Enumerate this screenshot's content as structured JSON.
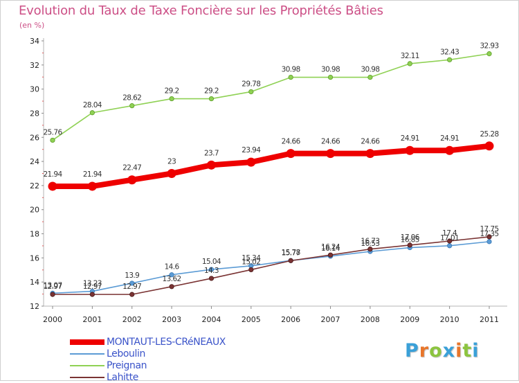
{
  "title": "Evolution du Taux de Taxe Foncière sur les Propriétés Bâties",
  "unit": "(en %)",
  "logo": {
    "text": "Proxiti",
    "letters": [
      "P",
      "r",
      "o",
      "x",
      "i",
      "t",
      "i"
    ],
    "colors": [
      "#3aa0d8",
      "#e8762b",
      "#8cc43f",
      "#3aa0d8",
      "#e8762b",
      "#8cc43f",
      "#3aa0d8"
    ]
  },
  "chart_data": {
    "type": "line",
    "title": "Evolution du Taux de Taxe Foncière sur les Propriétés Bâties",
    "ylabel": "(en %)",
    "xlabel": "",
    "x": [
      "2000",
      "2001",
      "2002",
      "2003",
      "2004",
      "2005",
      "2006",
      "2007",
      "2008",
      "2009",
      "2010",
      "2011"
    ],
    "ylim": [
      12,
      34
    ],
    "yticks": [
      "12",
      "14",
      "16",
      "18",
      "20",
      "22",
      "24",
      "26",
      "28",
      "30",
      "32",
      "34"
    ],
    "grid": false,
    "legend_position": "bottom-left",
    "series": [
      {
        "name": "MONTAUT-LES-CRéNEAUX",
        "color": "#ee0000",
        "values": [
          21.94,
          21.94,
          22.47,
          23,
          23.7,
          23.94,
          24.66,
          24.66,
          24.66,
          24.91,
          24.91,
          25.28
        ],
        "labels": [
          "21.94",
          "21.94",
          "22.47",
          "23",
          "23.7",
          "23.94",
          "24.66",
          "24.66",
          "24.66",
          "24.91",
          "24.91",
          "25.28"
        ]
      },
      {
        "name": "Leboulin",
        "color": "#5b9bd5",
        "values": [
          13.07,
          13.23,
          13.9,
          14.6,
          15.04,
          15.34,
          15.78,
          16.14,
          16.53,
          16.85,
          17.01,
          17.35
        ],
        "labels": [
          "13.07",
          "13.23",
          "13.9",
          "14.6",
          "15.04",
          "15.34",
          "15.78",
          "16.14",
          "16.53",
          "16.85",
          "17.01",
          "17.35"
        ]
      },
      {
        "name": "Preignan",
        "color": "#8fd154",
        "values": [
          25.76,
          28.04,
          28.62,
          29.2,
          29.2,
          29.78,
          30.98,
          30.98,
          30.98,
          32.11,
          32.43,
          32.93
        ],
        "labels": [
          "25.76",
          "28.04",
          "28.62",
          "29.2",
          "29.2",
          "29.78",
          "30.98",
          "30.98",
          "30.98",
          "32.11",
          "32.43",
          "32.93"
        ]
      },
      {
        "name": "Lahitte",
        "color": "#7a3333",
        "values": [
          12.97,
          12.97,
          12.97,
          13.62,
          14.3,
          15.02,
          15.77,
          16.24,
          16.73,
          17.06,
          17.4,
          17.75
        ],
        "labels": [
          "12.97",
          "12.97",
          "12.97",
          "13.62",
          "14.3",
          "15.02",
          "15.77",
          "16.24",
          "16.73",
          "17.06",
          "17.4",
          "17.75"
        ]
      }
    ]
  }
}
